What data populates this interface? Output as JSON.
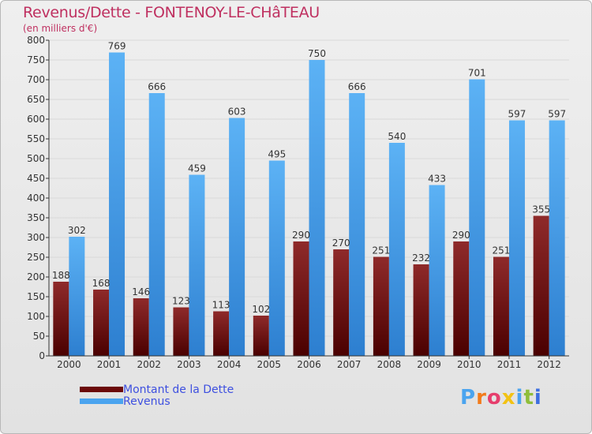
{
  "title": "Revenus/Dette - FONTENOY-LE-CHâTEAU",
  "subtitle": "(en milliers d'€)",
  "logo": {
    "text": "Proxiti",
    "letter_colors": [
      "#4aa4ef",
      "#f27b1a",
      "#e63e6d",
      "#f2c214",
      "#4aa4ef",
      "#8fbe3a",
      "#3d6ee0"
    ]
  },
  "colors": {
    "dette": "#6b0a0a",
    "revenus": "#4aa4ef",
    "axis": "#333333",
    "grid": "#d9d9d9",
    "legend_text": "#3e50e0",
    "title": "#bf3060"
  },
  "chart_data": {
    "type": "bar",
    "categories": [
      "2000",
      "2001",
      "2002",
      "2003",
      "2004",
      "2005",
      "2006",
      "2007",
      "2008",
      "2009",
      "2010",
      "2011",
      "2012"
    ],
    "series": [
      {
        "name": "Montant de la Dette",
        "values": [
          188,
          168,
          146,
          123,
          113,
          102,
          290,
          270,
          251,
          232,
          290,
          251,
          355
        ]
      },
      {
        "name": "Revenus",
        "values": [
          302,
          769,
          666,
          459,
          603,
          495,
          750,
          666,
          540,
          433,
          701,
          597,
          597
        ]
      }
    ],
    "ylim": [
      0,
      800
    ],
    "yticks": [
      0,
      50,
      100,
      150,
      200,
      250,
      300,
      350,
      400,
      450,
      500,
      550,
      600,
      650,
      700,
      750,
      800
    ],
    "grid": true,
    "legend_position": "bottom-left"
  }
}
